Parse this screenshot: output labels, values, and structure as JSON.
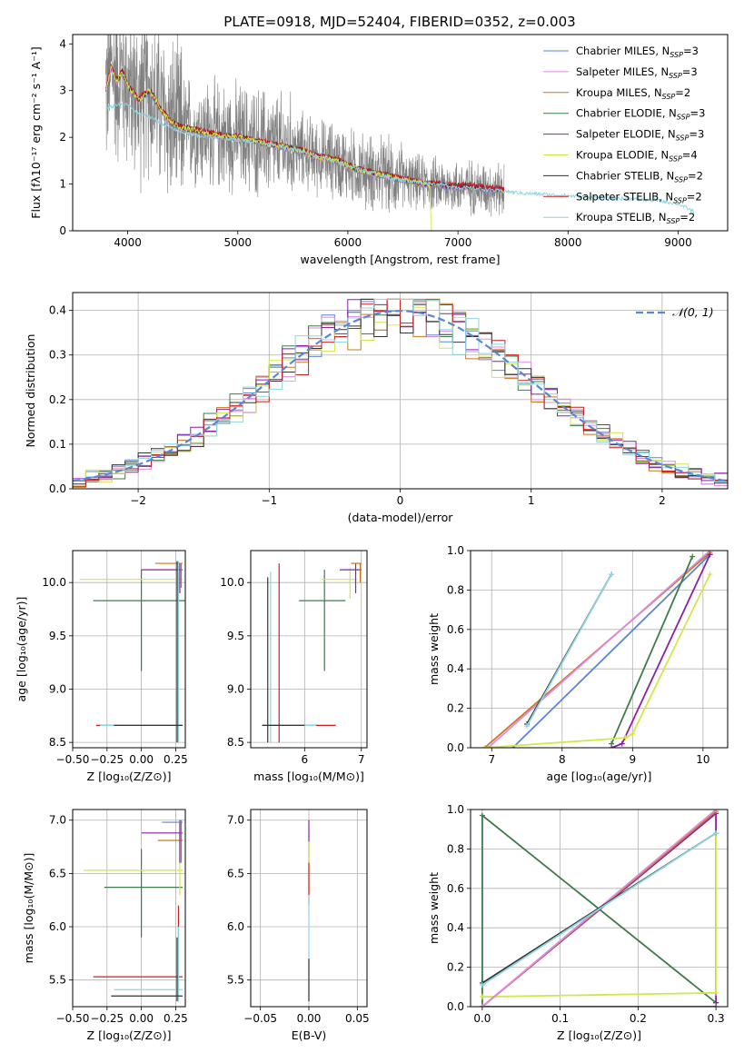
{
  "figure_title": "PLATE=0918, MJD=52404, FIBERID=0352, z=0.003",
  "colors": {
    "Chabrier MILES": "#5b86d6",
    "Salpeter MILES": "#e08ae0",
    "Kroupa MILES": "#c7781d",
    "Chabrier ELODIE": "#3f7a4a",
    "Salpeter ELODIE": "#8c1fa8",
    "Kroupa ELODIE": "#d4e64a",
    "Chabrier STELIB": "#333333",
    "Salpeter STELIB": "#cc1f1f",
    "Kroupa STELIB": "#8fd4e0",
    "data": "#808080",
    "normal": "#5b86d6"
  },
  "legend_spectrum": [
    {
      "pre": "Chabrier MILES, N",
      "sub": "SSP",
      "post": "=3"
    },
    {
      "pre": "Salpeter MILES, N",
      "sub": "SSP",
      "post": "=3"
    },
    {
      "pre": "Kroupa MILES, N",
      "sub": "SSP",
      "post": "=2"
    },
    {
      "pre": "Chabrier ELODIE, N",
      "sub": "SSP",
      "post": "=3"
    },
    {
      "pre": "Salpeter ELODIE, N",
      "sub": "SSP",
      "post": "=3"
    },
    {
      "pre": "Kroupa ELODIE, N",
      "sub": "SSP",
      "post": "=4"
    },
    {
      "pre": "Chabrier STELIB, N",
      "sub": "SSP",
      "post": "=2"
    },
    {
      "pre": "Salpeter STELIB, N",
      "sub": "SSP",
      "post": "=2"
    },
    {
      "pre": "Kroupa STELIB, N",
      "sub": "SSP",
      "post": "=2"
    }
  ],
  "chart_data": [
    {
      "id": "spectrum",
      "type": "line",
      "xlabel": "wavelength [Angstrom, rest frame]",
      "ylabel": "Flux [fλ10⁻¹⁷ erg cm⁻² s⁻¹ A⁻¹]",
      "xlim": [
        3500,
        9450
      ],
      "ylim": [
        0,
        4.2
      ],
      "xticks": [
        4000,
        5000,
        6000,
        7000,
        8000,
        9000
      ],
      "yticks": [
        0,
        1,
        2,
        3,
        4
      ],
      "grid": false,
      "legend_position": "top-right",
      "data_range": [
        3800,
        7420
      ],
      "model_curve": {
        "x": [
          3800,
          3850,
          3900,
          3950,
          4000,
          4100,
          4200,
          4300,
          4400,
          4500,
          4600,
          4700,
          4800,
          4900,
          5000,
          5100,
          5200,
          5300,
          5400,
          5500,
          5600,
          5700,
          5800,
          5900,
          6000,
          6100,
          6200,
          6300,
          6400,
          6500,
          6600,
          6700,
          6800,
          6900,
          7000,
          7100,
          7200,
          7300,
          7400
        ],
        "y": [
          3.0,
          3.5,
          3.2,
          3.4,
          3.1,
          2.8,
          3.0,
          2.6,
          2.3,
          2.2,
          2.15,
          2.1,
          2.05,
          2.0,
          2.0,
          1.95,
          1.9,
          1.85,
          1.8,
          1.75,
          1.7,
          1.6,
          1.55,
          1.5,
          1.4,
          1.3,
          1.25,
          1.2,
          1.15,
          1.1,
          1.05,
          1.0,
          1.0,
          0.95,
          0.95,
          0.95,
          0.92,
          0.9,
          0.88
        ]
      },
      "stelib_curve": {
        "x": [
          3800,
          3900,
          4000,
          4100,
          4200,
          4300,
          4400,
          4500,
          4600,
          4700,
          4800,
          5000,
          5200,
          5400,
          5600,
          5800,
          6000,
          6200,
          6400,
          6600,
          6800,
          7000,
          7200,
          7400,
          7600,
          7800,
          8000,
          8200,
          8400,
          8600,
          8800,
          9000,
          9150
        ],
        "y": [
          2.6,
          2.7,
          2.7,
          2.5,
          2.45,
          2.3,
          2.2,
          2.1,
          2.05,
          2.02,
          2.0,
          1.95,
          1.88,
          1.8,
          1.7,
          1.55,
          1.4,
          1.25,
          1.12,
          1.05,
          1.0,
          0.93,
          0.9,
          0.85,
          0.8,
          0.78,
          0.75,
          0.72,
          0.7,
          0.68,
          0.65,
          0.58,
          0.4
        ]
      }
    },
    {
      "id": "residuals",
      "type": "line",
      "xlabel": "(data-model)/error",
      "ylabel": "Normed distribution",
      "xlim": [
        -2.5,
        2.5
      ],
      "ylim": [
        0,
        0.44
      ],
      "xticks": [
        -2,
        -1,
        0,
        1,
        2
      ],
      "yticks": [
        0.0,
        0.1,
        0.2,
        0.3,
        0.4
      ],
      "grid": true,
      "legend_position": "top-right",
      "legend_label": "𝒩(0, 1)",
      "hist_bins": 50
    },
    {
      "id": "age-vs-Z",
      "type": "scatter",
      "xlabel": "Z [log₁₀(Z/Z⊙)]",
      "ylabel": "age [log₁₀(age/yr)]",
      "xlim": [
        -0.5,
        0.32
      ],
      "ylim": [
        8.45,
        10.3
      ],
      "xticks": [
        -0.5,
        -0.25,
        0.0,
        0.25
      ],
      "yticks": [
        8.5,
        9.0,
        9.5,
        10.0
      ],
      "grid": true
    },
    {
      "id": "age-vs-mass",
      "type": "scatter",
      "xlabel": "mass [log₁₀(M/M⊙)]",
      "ylabel": "",
      "xlim": [
        5.05,
        7.1
      ],
      "ylim": [
        8.45,
        10.3
      ],
      "xticks": [
        6,
        7
      ],
      "yticks": [
        8.5,
        9.0,
        9.5,
        10.0
      ],
      "grid": true
    },
    {
      "id": "weight-vs-age",
      "type": "line",
      "xlabel": "age [log₁₀(age/yr)]",
      "ylabel": "mass weight",
      "xlim": [
        6.7,
        10.35
      ],
      "ylim": [
        0,
        1.0
      ],
      "xticks": [
        7,
        8,
        9,
        10
      ],
      "yticks": [
        0.0,
        0.2,
        0.4,
        0.6,
        0.8,
        1.0
      ],
      "grid": true,
      "series": [
        {
          "model": "Chabrier MILES",
          "x": [
            7.3,
            10.1
          ],
          "y": [
            0.0,
            0.98
          ]
        },
        {
          "model": "Kroupa MILES",
          "x": [
            6.9,
            10.1
          ],
          "y": [
            0.0,
            0.99
          ]
        },
        {
          "model": "Salpeter MILES",
          "x": [
            6.95,
            10.1
          ],
          "y": [
            0.0,
            1.0
          ]
        },
        {
          "model": "Chabrier ELODIE",
          "x": [
            8.7,
            9.85
          ],
          "y": [
            0.02,
            0.97
          ]
        },
        {
          "model": "Salpeter ELODIE",
          "x": [
            8.7,
            8.85,
            10.1
          ],
          "y": [
            0.0,
            0.02,
            0.98
          ]
        },
        {
          "model": "Kroupa ELODIE",
          "x": [
            6.9,
            8.9,
            9.0,
            10.1
          ],
          "y": [
            0.0,
            0.05,
            0.07,
            0.88
          ]
        },
        {
          "model": "Chabrier STELIB",
          "x": [
            7.5,
            8.7
          ],
          "y": [
            0.12,
            0.88
          ]
        },
        {
          "model": "Kroupa STELIB",
          "x": [
            7.5,
            8.7
          ],
          "y": [
            0.11,
            0.88
          ]
        }
      ]
    },
    {
      "id": "mass-vs-Z",
      "type": "scatter",
      "xlabel": "Z [log₁₀(Z/Z⊙)]",
      "ylabel": "mass [log₁₀(M/M⊙)]",
      "xlim": [
        -0.5,
        0.32
      ],
      "ylim": [
        5.25,
        7.1
      ],
      "xticks": [
        -0.5,
        -0.25,
        0.0,
        0.25
      ],
      "yticks": [
        5.5,
        6.0,
        6.5,
        7.0
      ],
      "grid": true
    },
    {
      "id": "mass-vs-EBV",
      "type": "scatter",
      "xlabel": "E(B-V)",
      "ylabel": "",
      "xlim": [
        -0.06,
        0.06
      ],
      "ylim": [
        5.25,
        7.1
      ],
      "xticks": [
        -0.05,
        0.0,
        0.05
      ],
      "yticks": [
        5.5,
        6.0,
        6.5,
        7.0
      ],
      "grid": true
    },
    {
      "id": "weight-vs-Z",
      "type": "line",
      "xlabel": "Z [log₁₀(Z/Z⊙)]",
      "ylabel": "mass weight",
      "xlim": [
        -0.015,
        0.315
      ],
      "ylim": [
        0,
        1.0
      ],
      "xticks": [
        0.0,
        0.1,
        0.2,
        0.3
      ],
      "yticks": [
        0.0,
        0.2,
        0.4,
        0.6,
        0.8,
        1.0
      ],
      "grid": true,
      "series": [
        {
          "model": "Chabrier ELODIE",
          "x": [
            0.3,
            0.0,
            0.0,
            0.3
          ],
          "y": [
            0.02,
            0.97,
            0.0,
            0.0
          ]
        },
        {
          "model": "Salpeter ELODIE",
          "x": [
            0.0,
            0.3,
            0.3
          ],
          "y": [
            0.0,
            0.98,
            0.02
          ]
        },
        {
          "model": "Kroupa ELODIE",
          "x": [
            0.0,
            0.3,
            0.3
          ],
          "y": [
            0.05,
            0.07,
            0.88
          ]
        },
        {
          "model": "Kroupa MILES",
          "x": [
            0.0,
            0.3
          ],
          "y": [
            0.0,
            0.99
          ]
        },
        {
          "model": "Salpeter MILES",
          "x": [
            0.0,
            0.3
          ],
          "y": [
            0.0,
            1.0
          ]
        },
        {
          "model": "Chabrier STELIB",
          "x": [
            0.0,
            0.3
          ],
          "y": [
            0.12,
            0.88
          ]
        },
        {
          "model": "Kroupa STELIB",
          "x": [
            0.0,
            0.3
          ],
          "y": [
            0.11,
            0.88
          ]
        }
      ]
    }
  ],
  "error_points": {
    "age_Z": [
      {
        "model": "Chabrier ELODIE",
        "x": 0.0,
        "xe": [
          -0.35,
          0.35
        ],
        "y": 9.83,
        "ye": [
          9.17,
          10.12
        ]
      },
      {
        "model": "Kroupa ELODIE",
        "x": 0.27,
        "xe": [
          -0.45,
          0.3
        ],
        "y": 10.03,
        "ye": [
          9.83,
          10.14
        ]
      },
      {
        "model": "Salpeter ELODIE",
        "x": 0.28,
        "xe": [
          0.0,
          0.3
        ],
        "y": 10.12,
        "ye": [
          9.9,
          10.18
        ]
      },
      {
        "model": "Kroupa MILES",
        "x": 0.29,
        "xe": [
          0.1,
          0.3
        ],
        "y": 10.18,
        "ye": [
          9.95,
          10.18
        ]
      },
      {
        "model": "Salpeter STELIB",
        "x": 0.27,
        "xe": [
          -0.33,
          0.3
        ],
        "y": 8.66,
        "ye": [
          8.5,
          10.2
        ]
      },
      {
        "model": "Kroupa STELIB",
        "x": 0.27,
        "xe": [
          -0.3,
          0.3
        ],
        "y": 8.66,
        "ye": [
          8.5,
          10.2
        ]
      },
      {
        "model": "Chabrier STELIB",
        "x": 0.26,
        "xe": [
          -0.2,
          0.3
        ],
        "y": 8.66,
        "ye": [
          8.5,
          10.2
        ]
      }
    ],
    "age_mass": [
      {
        "model": "Chabrier ELODIE",
        "x": 6.35,
        "xe": [
          5.9,
          6.72
        ],
        "y": 9.83,
        "ye": [
          9.17,
          10.12
        ]
      },
      {
        "model": "Kroupa ELODIE",
        "x": 6.8,
        "xe": [
          6.3,
          6.92
        ],
        "y": 10.03,
        "ye": [
          9.85,
          10.14
        ]
      },
      {
        "model": "Salpeter ELODIE",
        "x": 6.9,
        "xe": [
          6.62,
          7.0
        ],
        "y": 10.12,
        "ye": [
          9.9,
          10.18
        ]
      },
      {
        "model": "Kroupa MILES",
        "x": 6.98,
        "xe": [
          6.82,
          7.0
        ],
        "y": 10.18,
        "ye": [
          10.0,
          10.18
        ]
      },
      {
        "model": "Salpeter STELIB",
        "x": 5.55,
        "xe": [
          5.25,
          6.55
        ],
        "y": 8.66,
        "ye": [
          8.5,
          10.18
        ]
      },
      {
        "model": "Kroupa STELIB",
        "x": 5.4,
        "xe": [
          5.25,
          6.2
        ],
        "y": 8.66,
        "ye": [
          8.5,
          10.1
        ]
      },
      {
        "model": "Chabrier STELIB",
        "x": 5.35,
        "xe": [
          5.25,
          6.0
        ],
        "y": 8.66,
        "ye": [
          8.5,
          10.05
        ]
      }
    ],
    "mass_Z": [
      {
        "model": "Chabrier ELODIE",
        "x": 0.0,
        "xe": [
          -0.27,
          0.3
        ],
        "y": 6.37,
        "ye": [
          5.9,
          6.73
        ]
      },
      {
        "model": "Kroupa ELODIE",
        "x": 0.28,
        "xe": [
          -0.42,
          0.3
        ],
        "y": 6.53,
        "ye": [
          6.3,
          6.9
        ]
      },
      {
        "model": "Kroupa MILES",
        "x": 0.29,
        "xe": [
          0.12,
          0.3
        ],
        "y": 6.81,
        "ye": [
          6.6,
          7.0
        ]
      },
      {
        "model": "Salpeter ELODIE",
        "x": 0.28,
        "xe": [
          0.0,
          0.3
        ],
        "y": 6.88,
        "ye": [
          6.6,
          7.0
        ]
      },
      {
        "model": "Chabrier MILES",
        "x": 0.29,
        "xe": [
          0.15,
          0.3
        ],
        "y": 6.98,
        "ye": [
          6.8,
          7.0
        ]
      },
      {
        "model": "Salpeter STELIB",
        "x": 0.27,
        "xe": [
          -0.35,
          0.3
        ],
        "y": 5.53,
        "ye": [
          5.3,
          6.2
        ]
      },
      {
        "model": "Kroupa STELIB",
        "x": 0.27,
        "xe": [
          -0.2,
          0.3
        ],
        "y": 5.41,
        "ye": [
          5.3,
          6.0
        ]
      },
      {
        "model": "Chabrier STELIB",
        "x": 0.26,
        "xe": [
          -0.22,
          0.3
        ],
        "y": 5.35,
        "ye": [
          5.3,
          5.9
        ]
      }
    ],
    "mass_EBV": [
      {
        "model": "Salpeter ELODIE",
        "x": 0.0,
        "y": 6.88,
        "ye": [
          6.6,
          7.0
        ]
      },
      {
        "model": "Kroupa ELODIE",
        "x": 0.0,
        "y": 6.6,
        "ye": [
          6.3,
          6.8
        ]
      },
      {
        "model": "Salpeter STELIB",
        "x": 0.0,
        "y": 6.4,
        "ye": [
          6.2,
          6.6
        ]
      },
      {
        "model": "Kroupa STELIB",
        "x": 0.0,
        "y": 5.8,
        "ye": [
          5.3,
          6.3
        ]
      },
      {
        "model": "Chabrier STELIB",
        "x": 0.0,
        "y": 5.5,
        "ye": [
          5.3,
          5.7
        ]
      }
    ]
  }
}
